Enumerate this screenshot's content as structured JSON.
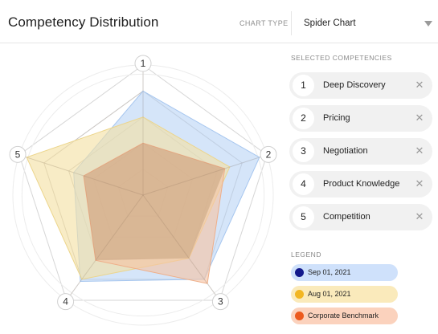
{
  "header": {
    "title": "Competency Distribution",
    "chart_type_label": "CHART TYPE",
    "chart_type_value": "Spider Chart"
  },
  "competencies": {
    "label": "SELECTED COMPETENCIES",
    "items": [
      {
        "number": "1",
        "label": "Deep Discovery",
        "remove_icon": "close-icon"
      },
      {
        "number": "2",
        "label": "Pricing",
        "remove_icon": "close-icon"
      },
      {
        "number": "3",
        "label": "Negotiation",
        "remove_icon": "close-icon"
      },
      {
        "number": "4",
        "label": "Product Knowledge",
        "remove_icon": "close-icon"
      },
      {
        "number": "5",
        "label": "Competition",
        "remove_icon": "close-icon"
      }
    ]
  },
  "legend": {
    "label": "LEGEND",
    "items": [
      {
        "label": "Sep 01, 2021",
        "dot_color": "#141a8c",
        "bg_color": "#cfe1fb"
      },
      {
        "label": "Aug 01, 2021",
        "dot_color": "#f2b623",
        "bg_color": "#faeabb"
      },
      {
        "label": "Corporate Benchmark",
        "dot_color": "#ec5a1e",
        "bg_color": "#fbd2bd"
      }
    ]
  },
  "chart_data": {
    "type": "radar",
    "axes": [
      "1",
      "2",
      "3",
      "4",
      "5"
    ],
    "max": 5,
    "grid_levels": 5,
    "series": [
      {
        "name": "Sep 01, 2021",
        "values": [
          4.0,
          4.7,
          4.0,
          4.1,
          2.8
        ],
        "fill": "#bcd5f5",
        "stroke": "#a6c6ef"
      },
      {
        "name": "Aug 01, 2021",
        "values": [
          3.0,
          3.5,
          3.0,
          4.0,
          4.7
        ],
        "fill": "#f4e1a3",
        "stroke": "#ecd58b"
      },
      {
        "name": "Corporate Benchmark",
        "values": [
          2.0,
          3.3,
          4.2,
          3.1,
          2.4
        ],
        "fill": "#f6c4a3",
        "stroke": "#efae88"
      }
    ]
  }
}
